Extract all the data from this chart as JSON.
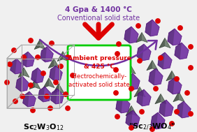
{
  "bg_color": "#f0f0f0",
  "title_top1": "4 Gpa & 1400 °C",
  "title_top2": "Conventional solid state",
  "box_text1": "Ambient pressure",
  "box_text2": "& 425 °C",
  "box_text3": "Electrochemically-",
  "box_text4": "activated solid state",
  "arrow_top_color": "#7030a0",
  "arrow_down_color": "#dd0000",
  "arrow_right_color": "#00cc00",
  "box_border_color": "#00cc00",
  "box_bg_color": "#ffffff",
  "box_text_color": "#dd0000",
  "top_text_color": "#7030a0",
  "label_color": "#000000",
  "purple": "#7030a0",
  "purple_edge": "#4a007a",
  "gray": "#607060",
  "gray_edge": "#304030",
  "red_dot": "#dd0000",
  "box_line_color": "#aaaaaa"
}
